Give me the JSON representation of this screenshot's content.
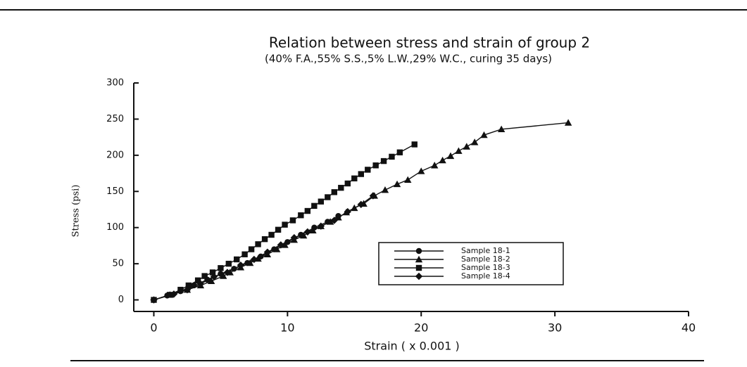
{
  "chart_data": {
    "type": "line",
    "title": "Relation between stress and strain of group 2",
    "subtitle": "(40% F.A.,55% S.S.,5% L.W.,29% W.C., curing 35 days)",
    "x_label": "Strain ( x 0.001 )",
    "y_label": "Stress (psi)",
    "xlim": [
      -1.5,
      40
    ],
    "xticks": [
      0,
      10,
      20,
      30,
      40
    ],
    "ylim": [
      -16,
      300
    ],
    "yticks": [
      0,
      50,
      100,
      150,
      200,
      250,
      300
    ],
    "legend": "lower right",
    "series": [
      {
        "name": "Sample 18-1",
        "marker": "circle",
        "color": "#111111",
        "x": [
          0,
          1,
          2,
          3,
          4,
          5,
          6,
          7,
          8,
          9,
          10,
          11,
          12,
          13,
          13.8
        ],
        "values": [
          0,
          6,
          12,
          20,
          28,
          36,
          43,
          51,
          60,
          70,
          80,
          90,
          100,
          108,
          116
        ]
      },
      {
        "name": "Sample 18-2",
        "marker": "triangle",
        "color": "#111111",
        "x": [
          1.2,
          2.5,
          3.5,
          4.3,
          5.2,
          5.7,
          6.5,
          7.2,
          7.8,
          8.5,
          9.2,
          9.8,
          10.5,
          11.2,
          11.9,
          12.5,
          13.2,
          13.8,
          14.4,
          15,
          15.7,
          16.5,
          17.3,
          18.2,
          19,
          20,
          21,
          21.6,
          22.2,
          22.8,
          23.4,
          24,
          24.7,
          26,
          31
        ],
        "values": [
          7,
          14,
          20,
          26,
          33,
          38,
          45,
          51,
          57,
          63,
          70,
          76,
          83,
          89,
          96,
          102,
          108,
          114,
          121,
          127,
          133,
          144,
          152,
          160,
          166,
          178,
          186,
          193,
          199,
          206,
          212,
          218,
          228,
          236,
          245
        ]
      },
      {
        "name": "Sample 18-3",
        "marker": "square",
        "color": "#111111",
        "x": [
          0,
          1.2,
          2,
          2.6,
          3.3,
          3.8,
          4.4,
          5,
          5.6,
          6.2,
          6.8,
          7.3,
          7.8,
          8.3,
          8.8,
          9.3,
          9.8,
          10.4,
          11,
          11.5,
          12,
          12.5,
          13,
          13.5,
          14,
          14.5,
          15,
          15.5,
          16,
          16.6,
          17.2,
          17.8,
          18.4,
          19.5
        ],
        "values": [
          0,
          7,
          14,
          20,
          27,
          33,
          38,
          44,
          50,
          56,
          63,
          70,
          77,
          84,
          90,
          97,
          104,
          110,
          117,
          123,
          130,
          136,
          142,
          149,
          155,
          161,
          168,
          174,
          180,
          186,
          192,
          198,
          204,
          215
        ]
      },
      {
        "name": "Sample 18-4",
        "marker": "diamond",
        "color": "#111111",
        "x": [
          0,
          1.5,
          2.5,
          3.5,
          4.5,
          5.5,
          6.5,
          7.5,
          8.5,
          9.5,
          10.5,
          11.5,
          12.5,
          13.5,
          14.5,
          15.5,
          16.4
        ],
        "values": [
          0,
          8,
          14,
          22,
          32,
          38,
          48,
          56,
          66,
          76,
          86,
          94,
          102,
          110,
          122,
          132,
          144
        ]
      }
    ]
  }
}
